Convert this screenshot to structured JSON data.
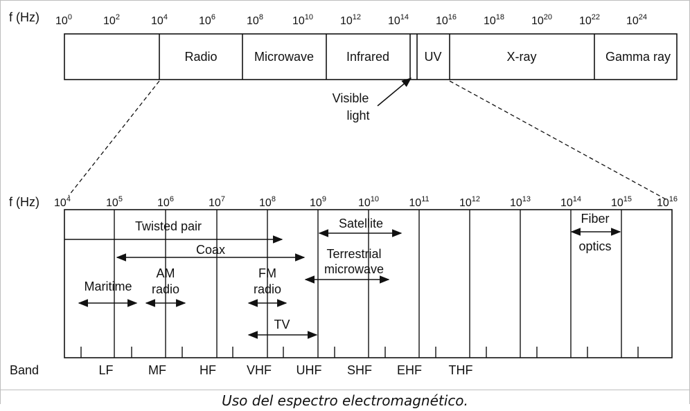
{
  "top_scale": {
    "axis_label": "f (Hz)",
    "tick_base": "10",
    "ticks": [
      "0",
      "2",
      "4",
      "6",
      "8",
      "10",
      "12",
      "14",
      "16",
      "18",
      "20",
      "22",
      "24"
    ],
    "bands": [
      "Radio",
      "Microwave",
      "Infrared",
      "UV",
      "X-ray",
      "Gamma ray"
    ],
    "visible_label_1": "Visible",
    "visible_label_2": "light"
  },
  "bottom_scale": {
    "axis_label": "f (Hz)",
    "tick_base": "10",
    "ticks": [
      "4",
      "5",
      "6",
      "7",
      "8",
      "9",
      "10",
      "11",
      "12",
      "13",
      "14",
      "15",
      "16"
    ],
    "band_axis_label": "Band",
    "band_names": [
      "LF",
      "MF",
      "HF",
      "VHF",
      "UHF",
      "SHF",
      "EHF",
      "THF"
    ],
    "media": {
      "twisted_pair": "Twisted pair",
      "coax": "Coax",
      "maritime": "Maritime",
      "am_1": "AM",
      "am_2": "radio",
      "fm_1": "FM",
      "fm_2": "radio",
      "tv": "TV",
      "satellite": "Satellite",
      "terrestrial_1": "Terrestrial",
      "terrestrial_2": "microwave",
      "fiber_1": "Fiber",
      "fiber_2": "optics"
    }
  },
  "caption": "Uso del espectro electromagnético."
}
